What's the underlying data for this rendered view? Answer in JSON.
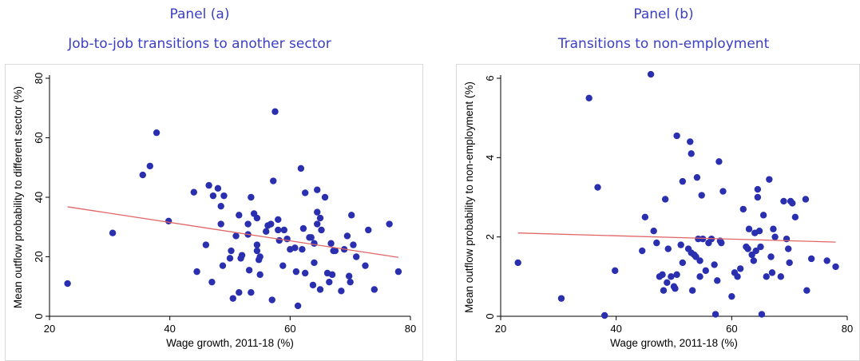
{
  "chart_data": [
    {
      "type": "scatter",
      "panel_label": "Panel (a)",
      "title": "Job-to-job transitions to another sector",
      "xlabel": "Wage growth, 2011-18 (%)",
      "ylabel": "Mean outflow probability to different sector (%)",
      "xlim": [
        20,
        80
      ],
      "ylim": [
        0,
        80
      ],
      "xticks": [
        20,
        40,
        60,
        80
      ],
      "yticks": [
        0,
        20,
        40,
        60,
        80
      ],
      "grid": false,
      "marker_color": "#2a2fb0",
      "fit_color": "#e06666",
      "fit_line": [
        [
          23,
          36.8
        ],
        [
          78,
          19.8
        ]
      ],
      "points": [
        [
          23,
          11
        ],
        [
          30.5,
          28
        ],
        [
          35.5,
          47.5
        ],
        [
          36.7,
          50.5
        ],
        [
          37.8,
          61.7
        ],
        [
          39.8,
          32
        ],
        [
          44,
          41.7
        ],
        [
          44.5,
          15
        ],
        [
          46,
          24
        ],
        [
          46.5,
          44
        ],
        [
          47,
          11.5
        ],
        [
          47.2,
          40.5
        ],
        [
          48,
          43
        ],
        [
          48.5,
          31
        ],
        [
          48.5,
          37
        ],
        [
          48.8,
          17
        ],
        [
          49,
          40.5
        ],
        [
          50,
          19.5
        ],
        [
          50.2,
          22
        ],
        [
          50.5,
          6
        ],
        [
          51,
          27
        ],
        [
          51.5,
          34
        ],
        [
          51.5,
          8
        ],
        [
          51.8,
          19.5
        ],
        [
          52,
          20.5
        ],
        [
          53,
          27.5
        ],
        [
          53,
          31
        ],
        [
          53.2,
          15.5
        ],
        [
          53.5,
          40
        ],
        [
          53.5,
          8
        ],
        [
          54,
          34.5
        ],
        [
          54.5,
          22
        ],
        [
          54.5,
          33
        ],
        [
          54.5,
          24
        ],
        [
          54.8,
          19
        ],
        [
          55,
          20
        ],
        [
          55,
          14
        ],
        [
          56,
          28.5
        ],
        [
          56.3,
          30.5
        ],
        [
          56.8,
          31
        ],
        [
          57,
          5.5
        ],
        [
          57.2,
          45.5
        ],
        [
          57.5,
          68.8
        ],
        [
          58,
          32.5
        ],
        [
          58,
          29
        ],
        [
          58.2,
          25.5
        ],
        [
          58.8,
          17
        ],
        [
          59,
          29
        ],
        [
          59.5,
          26
        ],
        [
          60,
          22.5
        ],
        [
          60.8,
          23
        ],
        [
          61,
          15
        ],
        [
          61.3,
          3.5
        ],
        [
          61.8,
          49.7
        ],
        [
          62,
          22.5
        ],
        [
          62.2,
          29.5
        ],
        [
          62.5,
          41.5
        ],
        [
          62.5,
          14.5
        ],
        [
          63.2,
          26.5
        ],
        [
          63.5,
          26.5
        ],
        [
          63.8,
          10.5
        ],
        [
          64,
          18
        ],
        [
          64,
          24.5
        ],
        [
          64.5,
          35
        ],
        [
          64.5,
          31
        ],
        [
          64.5,
          42.5
        ],
        [
          65,
          9
        ],
        [
          65,
          33
        ],
        [
          65.2,
          29
        ],
        [
          65.8,
          40
        ],
        [
          66.2,
          14.5
        ],
        [
          66.5,
          11.5
        ],
        [
          66.8,
          24.5
        ],
        [
          67,
          14
        ],
        [
          67.2,
          22
        ],
        [
          67.5,
          22
        ],
        [
          68.5,
          8.5
        ],
        [
          69,
          22.5
        ],
        [
          69.5,
          27
        ],
        [
          69.8,
          13.5
        ],
        [
          70,
          11.5
        ],
        [
          70.2,
          34
        ],
        [
          70.5,
          24
        ],
        [
          71,
          20
        ],
        [
          72.5,
          17
        ],
        [
          73,
          29
        ],
        [
          74,
          9
        ],
        [
          76.5,
          31
        ],
        [
          78,
          15
        ]
      ]
    },
    {
      "type": "scatter",
      "panel_label": "Panel (b)",
      "title": "Transitions to non-employment",
      "xlabel": "Wage growth, 2011-18 (%)",
      "ylabel": "Mean outflow probability to non-employment (%)",
      "xlim": [
        20,
        80
      ],
      "ylim": [
        0,
        6
      ],
      "xticks": [
        20,
        40,
        60,
        80
      ],
      "yticks": [
        0,
        2,
        4,
        6
      ],
      "grid": false,
      "marker_color": "#2a2fb0",
      "fit_color": "#e06666",
      "fit_line": [
        [
          23,
          2.1
        ],
        [
          78,
          1.87
        ]
      ],
      "points": [
        [
          23,
          1.35
        ],
        [
          30.5,
          0.45
        ],
        [
          35.3,
          5.5
        ],
        [
          36.8,
          3.25
        ],
        [
          38,
          0.02
        ],
        [
          39.8,
          1.15
        ],
        [
          44.5,
          1.65
        ],
        [
          45,
          2.5
        ],
        [
          46,
          6.1
        ],
        [
          46.5,
          2.15
        ],
        [
          47,
          1.85
        ],
        [
          47.5,
          1.0
        ],
        [
          48,
          1.05
        ],
        [
          48.2,
          0.65
        ],
        [
          48.5,
          2.95
        ],
        [
          48.8,
          0.85
        ],
        [
          49,
          1.7
        ],
        [
          49.5,
          1.0
        ],
        [
          50,
          0.75
        ],
        [
          50.2,
          0.7
        ],
        [
          50.5,
          1.05
        ],
        [
          50.5,
          4.55
        ],
        [
          51.2,
          1.8
        ],
        [
          51.5,
          1.35
        ],
        [
          51.5,
          3.4
        ],
        [
          52.5,
          1.7
        ],
        [
          52.8,
          4.4
        ],
        [
          53,
          4.1
        ],
        [
          53,
          1.6
        ],
        [
          53.2,
          0.65
        ],
        [
          53.5,
          1.55
        ],
        [
          53.8,
          1.5
        ],
        [
          54,
          3.5
        ],
        [
          54.2,
          1.95
        ],
        [
          54.5,
          1.4
        ],
        [
          54.5,
          1.0
        ],
        [
          54.8,
          3.05
        ],
        [
          55,
          1.95
        ],
        [
          55.5,
          1.15
        ],
        [
          56,
          1.85
        ],
        [
          56.5,
          1.95
        ],
        [
          57,
          1.3
        ],
        [
          57.2,
          0.05
        ],
        [
          57.5,
          0.9
        ],
        [
          57.8,
          3.9
        ],
        [
          58,
          1.9
        ],
        [
          58.2,
          1.85
        ],
        [
          58.5,
          3.15
        ],
        [
          60,
          0.5
        ],
        [
          60.5,
          1.1
        ],
        [
          61,
          1.0
        ],
        [
          61.5,
          1.2
        ],
        [
          62,
          2.7
        ],
        [
          62.5,
          1.75
        ],
        [
          62.8,
          1.7
        ],
        [
          63,
          2.2
        ],
        [
          63.5,
          1.55
        ],
        [
          63.8,
          1.4
        ],
        [
          64,
          2.1
        ],
        [
          64.2,
          1.65
        ],
        [
          64.5,
          3.0
        ],
        [
          64.5,
          3.2
        ],
        [
          64.8,
          2.15
        ],
        [
          65,
          1.75
        ],
        [
          65.2,
          0.05
        ],
        [
          65.5,
          2.55
        ],
        [
          66,
          1.0
        ],
        [
          66.5,
          3.45
        ],
        [
          66.8,
          1.5
        ],
        [
          67,
          1.1
        ],
        [
          67.2,
          2.2
        ],
        [
          67.5,
          2.0
        ],
        [
          68.5,
          1.0
        ],
        [
          69,
          2.9
        ],
        [
          69.5,
          1.95
        ],
        [
          69.8,
          1.7
        ],
        [
          70,
          1.35
        ],
        [
          70.2,
          2.9
        ],
        [
          70.5,
          2.85
        ],
        [
          71,
          2.5
        ],
        [
          72.8,
          2.95
        ],
        [
          73,
          0.65
        ],
        [
          73.8,
          1.45
        ],
        [
          76.5,
          1.4
        ],
        [
          78,
          1.25
        ]
      ]
    }
  ]
}
